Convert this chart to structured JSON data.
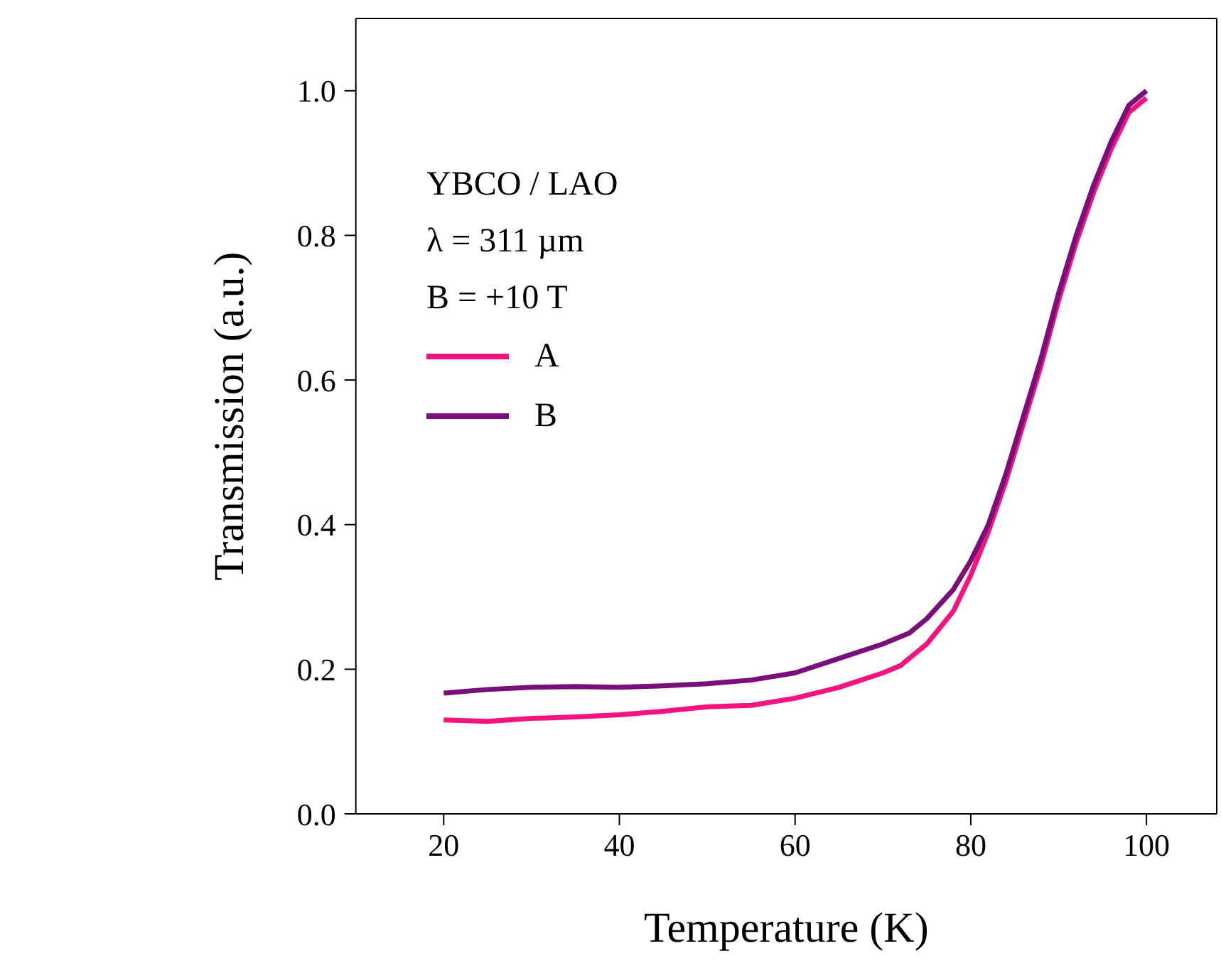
{
  "chart_data": {
    "type": "line",
    "xlabel": "Temperature (K)",
    "ylabel": "Transmission (a.u.)",
    "annotations": [
      "YBCO / LAO",
      "λ = 311 µm",
      "B = +10 T"
    ],
    "xlim": [
      10,
      108
    ],
    "xticks": [
      20,
      40,
      60,
      80,
      100
    ],
    "ylim": [
      0,
      1.1
    ],
    "yticks": [
      {
        "value": 0,
        "label": "0.0"
      },
      0.2,
      0.4,
      0.6,
      0.8,
      {
        "value": 1,
        "label": "1.0"
      }
    ],
    "grid": false,
    "legend": "top left",
    "marker": "none",
    "line_style": "solid",
    "series": [
      {
        "name": "A",
        "color": "#f4137f",
        "x": [
          20,
          25,
          30,
          35,
          40,
          45,
          50,
          55,
          60,
          65,
          70,
          72,
          75,
          78,
          80,
          82,
          84,
          86,
          88,
          90,
          92,
          94,
          96,
          98,
          100
        ],
        "values": [
          0.13,
          0.128,
          0.132,
          0.134,
          0.137,
          0.142,
          0.148,
          0.15,
          0.16,
          0.175,
          0.195,
          0.205,
          0.235,
          0.28,
          0.33,
          0.39,
          0.46,
          0.54,
          0.62,
          0.71,
          0.79,
          0.86,
          0.92,
          0.97,
          0.99
        ]
      },
      {
        "name": "B",
        "color": "#7a0f7a",
        "x": [
          20,
          25,
          30,
          35,
          40,
          45,
          50,
          55,
          60,
          65,
          70,
          73,
          75,
          78,
          80,
          82,
          84,
          86,
          88,
          90,
          92,
          94,
          96,
          98,
          100
        ],
        "values": [
          0.167,
          0.172,
          0.175,
          0.176,
          0.175,
          0.177,
          0.18,
          0.185,
          0.195,
          0.215,
          0.235,
          0.25,
          0.27,
          0.31,
          0.35,
          0.4,
          0.47,
          0.55,
          0.63,
          0.72,
          0.8,
          0.87,
          0.93,
          0.98,
          1.0
        ]
      }
    ]
  }
}
